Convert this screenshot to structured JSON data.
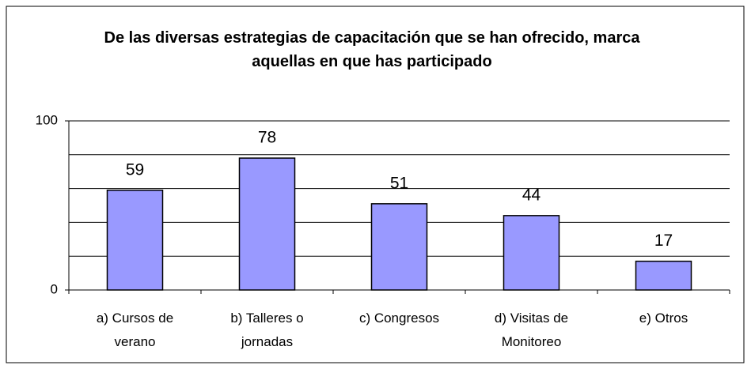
{
  "chart_data": {
    "type": "bar",
    "title": "De las diversas estrategias de capacitación que se han ofrecido, marca aquellas en que has participado",
    "categories": [
      "a) Cursos de verano",
      "b) Talleres o jornadas",
      "c) Congresos",
      "d) Visitas de Monitoreo",
      "e) Otros"
    ],
    "values": [
      59,
      78,
      51,
      44,
      17
    ],
    "color": "#9999ff",
    "ylim": [
      0,
      100
    ],
    "yticks": [
      0,
      100
    ],
    "minor_yticks": [
      20,
      40,
      60,
      80
    ],
    "grid": true
  }
}
